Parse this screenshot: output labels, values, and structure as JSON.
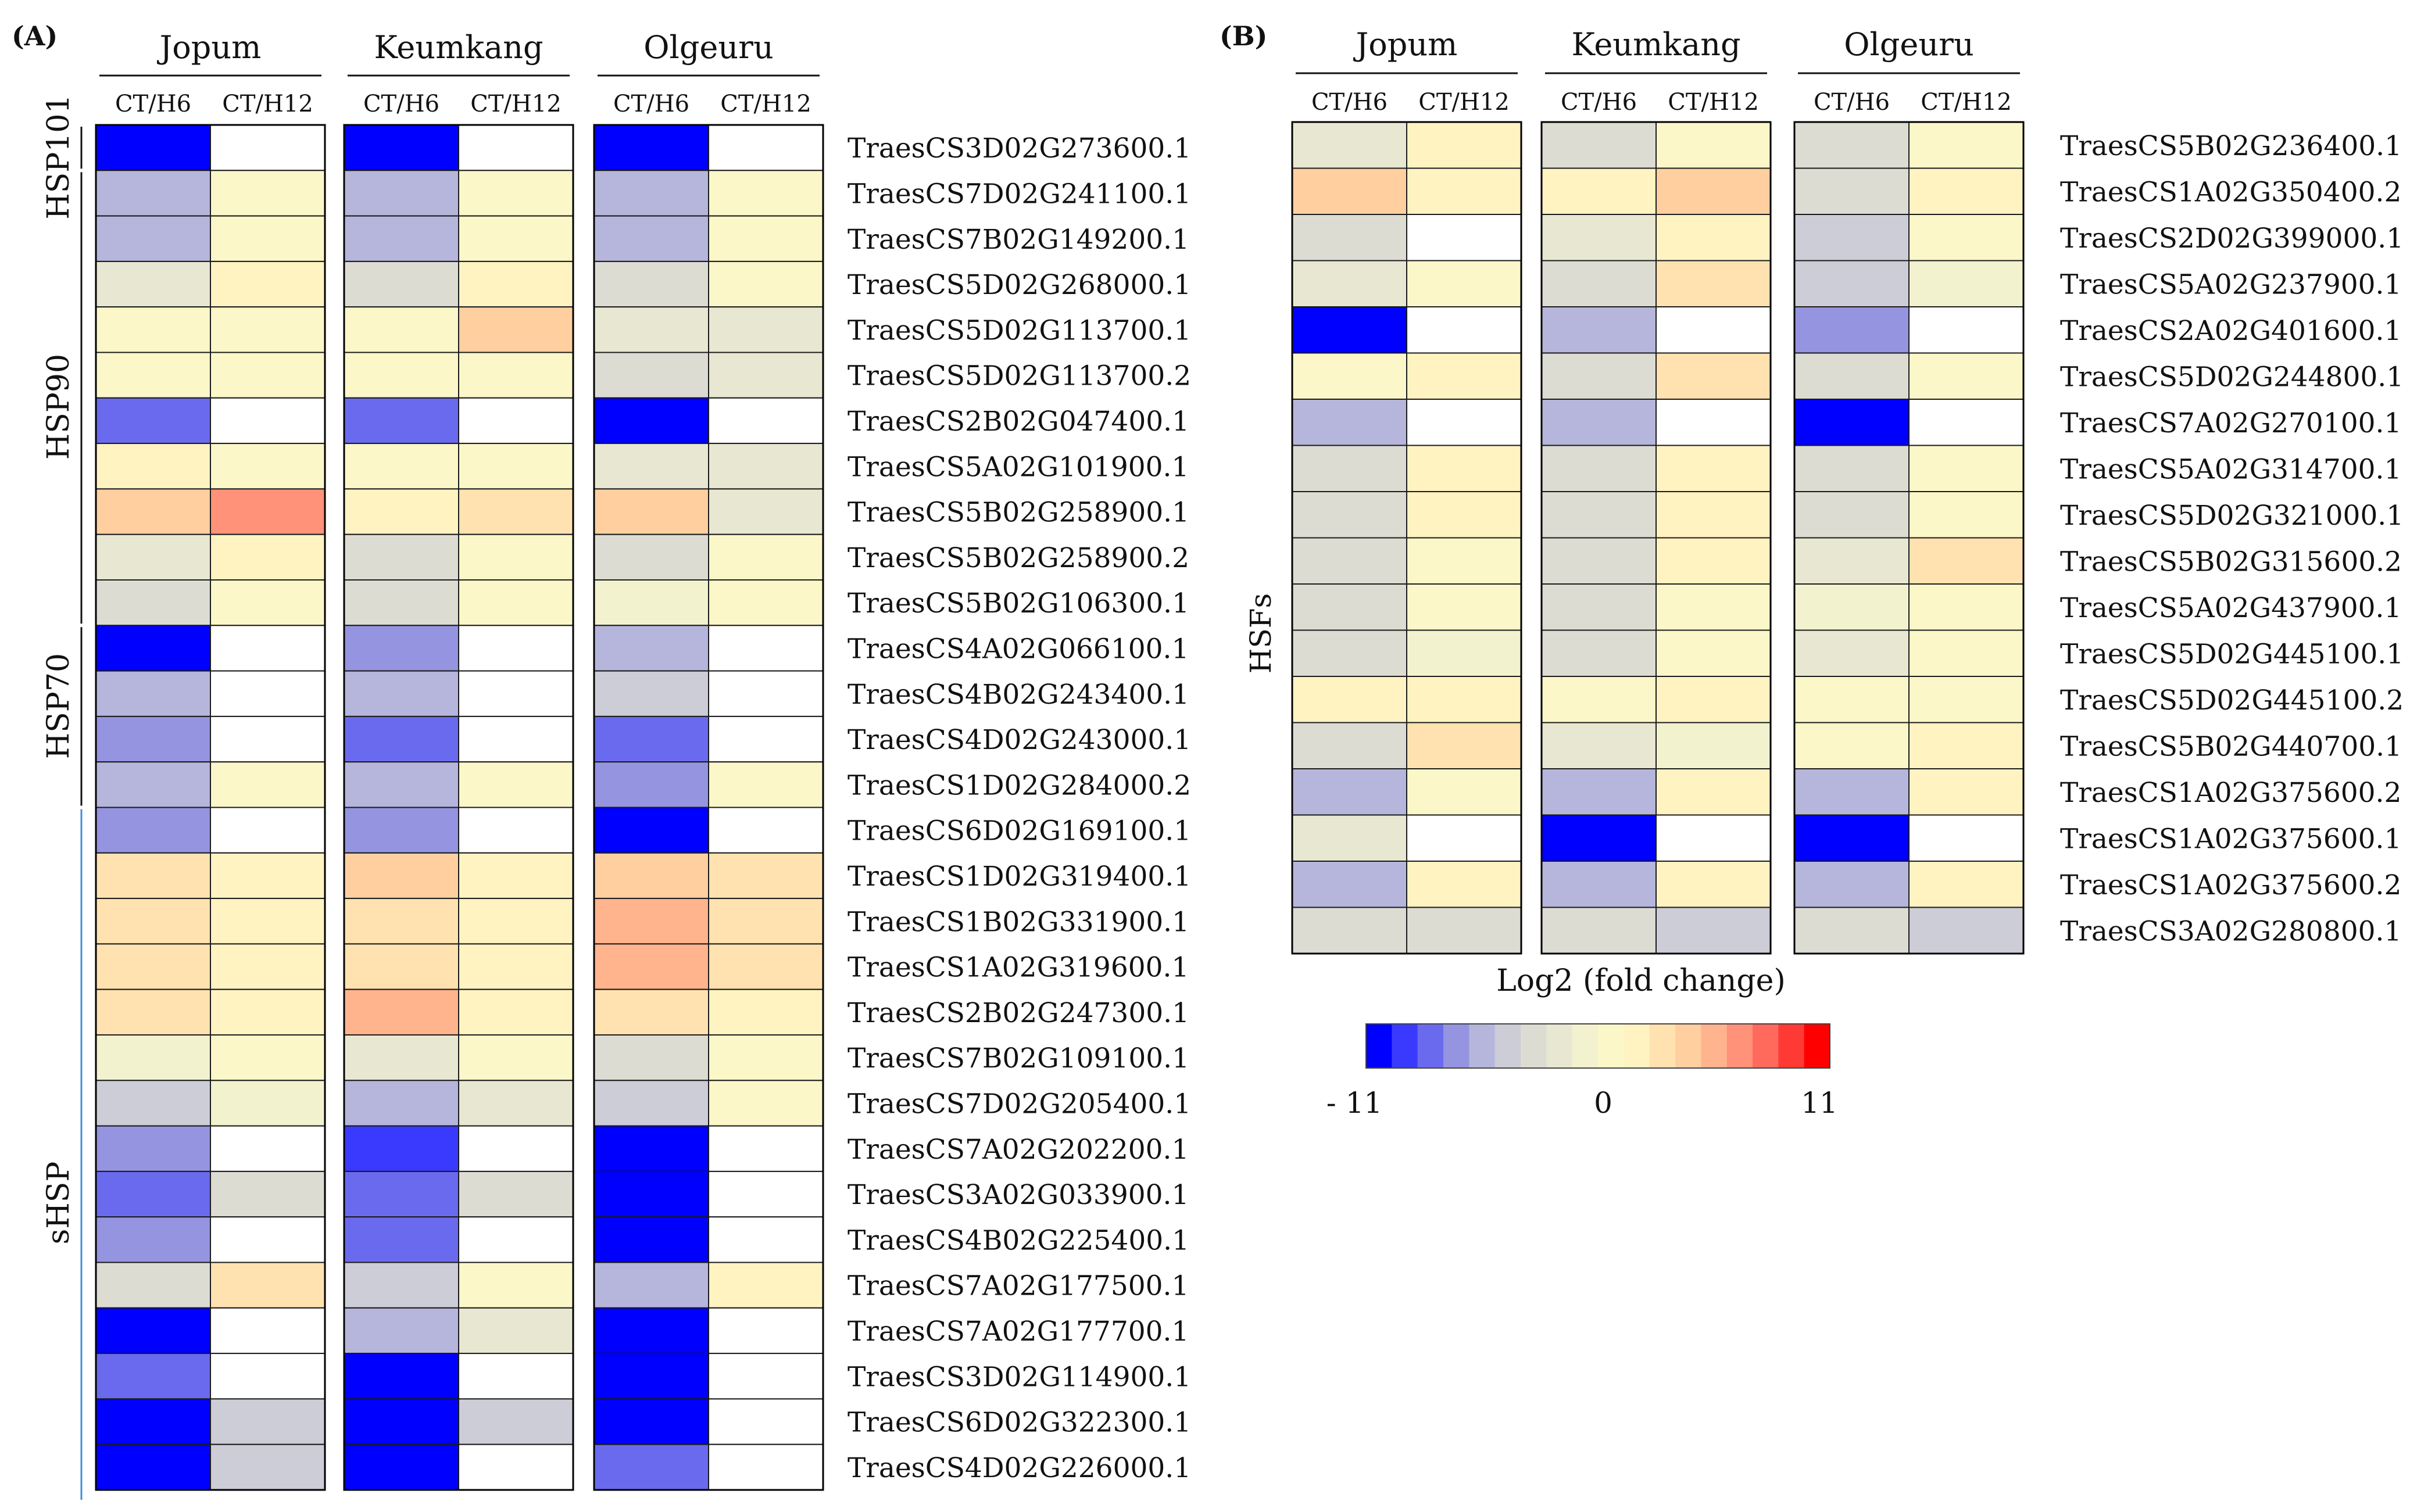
{
  "scale": {
    "min": -11,
    "max": 11,
    "title": "Log2 (fold change)",
    "tick_labels": [
      "- 11",
      "0",
      "11"
    ],
    "colors": [
      "#0000ff",
      "#3a3aff",
      "#6a6aee",
      "#9494e0",
      "#b6b6dc",
      "#cdcdd8",
      "#dcdcd3",
      "#e8e8d2",
      "#f2f2cf",
      "#fbf7c8",
      "#fff3c2",
      "#ffe2b0",
      "#ffcfa0",
      "#ffb48e",
      "#ff9279",
      "#ff6a5c",
      "#ff3a35",
      "#ff0000"
    ]
  },
  "chart_data": [
    {
      "type": "heatmap",
      "panel_label": "(A)",
      "cultivars": [
        "Jopum",
        "Keumkang",
        "Olgeuru"
      ],
      "conditions": [
        "CT/H6",
        "CT/H12"
      ],
      "groups": [
        {
          "label": "HSP101",
          "start": 0,
          "end": 1
        },
        {
          "label": "HSP90",
          "start": 1,
          "end": 11
        },
        {
          "label": "HSP70",
          "start": 11,
          "end": 15
        },
        {
          "label": "sHSP",
          "start": 15,
          "end": 30
        }
      ],
      "genes": [
        "TraesCS3D02G273600.1",
        "TraesCS7D02G241100.1",
        "TraesCS7B02G149200.1",
        "TraesCS5D02G268000.1",
        "TraesCS5D02G113700.1",
        "TraesCS5D02G113700.2",
        "TraesCS2B02G047400.1",
        "TraesCS5A02G101900.1",
        "TraesCS5B02G258900.1",
        "TraesCS5B02G258900.2",
        "TraesCS5B02G106300.1",
        "TraesCS4A02G066100.1",
        "TraesCS4B02G243400.1",
        "TraesCS4D02G243000.1",
        "TraesCS1D02G284000.2",
        "TraesCS6D02G169100.1",
        "TraesCS1D02G319400.1",
        "TraesCS1B02G331900.1",
        "TraesCS1A02G319600.1",
        "TraesCS2B02G247300.1",
        "TraesCS7B02G109100.1",
        "TraesCS7D02G205400.1",
        "TraesCS7A02G202200.1",
        "TraesCS3A02G033900.1",
        "TraesCS4B02G225400.1",
        "TraesCS7A02G177500.1",
        "TraesCS7A02G177700.1",
        "TraesCS3D02G114900.1",
        "TraesCS6D02G322300.1",
        "TraesCS4D02G226000.1"
      ],
      "values": [
        [
          -10,
          null,
          -10,
          null,
          -10,
          null
        ],
        [
          -5,
          1,
          -6,
          1,
          -6,
          1
        ],
        [
          -5,
          0.5,
          -6,
          0.5,
          -5.5,
          0.5
        ],
        [
          -2,
          2,
          -2.5,
          2,
          -3,
          1
        ],
        [
          0,
          1,
          1,
          4,
          -2,
          -2
        ],
        [
          1,
          1,
          0,
          1,
          -3,
          -2
        ],
        [
          -8,
          null,
          -8.5,
          null,
          -10.5,
          null
        ],
        [
          2,
          1,
          0.5,
          1,
          -2,
          -2
        ],
        [
          4,
          7,
          2,
          3,
          4.5,
          -2
        ],
        [
          -2,
          2,
          -3,
          1,
          -3,
          1
        ],
        [
          -3,
          0.5,
          -3.5,
          1,
          -1,
          1
        ],
        [
          -10,
          null,
          -6.5,
          null,
          -5.5,
          null
        ],
        [
          -5,
          null,
          -6,
          null,
          -4.5,
          null
        ],
        [
          -6.5,
          null,
          -8,
          null,
          -8.5,
          null
        ],
        [
          -6,
          0,
          -6,
          1,
          -6.5,
          1
        ],
        [
          -7,
          null,
          -6.5,
          null,
          -10.5,
          null
        ],
        [
          3.5,
          2,
          4,
          2,
          4.5,
          2.5
        ],
        [
          3.5,
          2,
          3.5,
          2,
          5,
          3
        ],
        [
          3.5,
          2,
          3.5,
          2,
          5,
          2.5
        ],
        [
          3.5,
          2,
          5,
          2,
          2.5,
          2
        ],
        [
          -1,
          1,
          -2,
          1,
          -2.5,
          1
        ],
        [
          -4.5,
          -1,
          -5,
          -2,
          -4.5,
          0
        ],
        [
          -6.5,
          null,
          -9,
          null,
          -11,
          null
        ],
        [
          -8,
          -3,
          -8,
          -3,
          -11,
          null
        ],
        [
          -6.5,
          null,
          -8.5,
          null,
          -11,
          null
        ],
        [
          -3.5,
          2.5,
          -4,
          1,
          -5.5,
          2
        ],
        [
          -11,
          null,
          -5,
          -1.5,
          -11,
          null
        ],
        [
          -8.5,
          null,
          -10,
          null,
          -11,
          null
        ],
        [
          -10,
          -4.5,
          -10,
          -4.5,
          -10.5,
          null
        ],
        [
          -10,
          -4.5,
          -10,
          null,
          -7.5,
          null
        ]
      ]
    },
    {
      "type": "heatmap",
      "panel_label": "(B)",
      "side_label": "HSFs",
      "cultivars": [
        "Jopum",
        "Keumkang",
        "Olgeuru"
      ],
      "conditions": [
        "CT/H6",
        "CT/H12"
      ],
      "genes": [
        "TraesCS5B02G236400.1",
        "TraesCS1A02G350400.2",
        "TraesCS2D02G399000.1",
        "TraesCS5A02G237900.1",
        "TraesCS2A02G401600.1",
        "TraesCS5D02G244800.1",
        "TraesCS7A02G270100.1",
        "TraesCS5A02G314700.1",
        "TraesCS5D02G321000.1",
        "TraesCS5B02G315600.2",
        "TraesCS5A02G437900.1",
        "TraesCS5D02G445100.1",
        "TraesCS5D02G445100.2",
        "TraesCS5B02G440700.1",
        "TraesCS1A02G375600.2",
        "TraesCS1A02G375600.1",
        "TraesCS1A02G375600.2",
        "TraesCS3A02G280800.1"
      ],
      "values": [
        [
          -2,
          1.5,
          -3.5,
          0.5,
          -3.5,
          0.5
        ],
        [
          4,
          2,
          1.5,
          4,
          -2.5,
          2
        ],
        [
          -3.5,
          null,
          -2,
          2,
          -4.5,
          1
        ],
        [
          -1.5,
          1,
          -3,
          3.5,
          -4.5,
          -1
        ],
        [
          -10,
          null,
          -6,
          null,
          -7,
          null
        ],
        [
          1,
          2,
          -2.5,
          3.5,
          -3,
          0.5
        ],
        [
          -5,
          null,
          -6,
          null,
          -11,
          null
        ],
        [
          -3,
          1.5,
          -3,
          2,
          -2.5,
          1
        ],
        [
          -3,
          2,
          -3,
          2,
          -2.5,
          1
        ],
        [
          -3.5,
          1,
          -3.5,
          2,
          -1.5,
          2.5
        ],
        [
          -3,
          0,
          -2.5,
          1,
          -1,
          1
        ],
        [
          -3.5,
          -0.5,
          -2.5,
          0.5,
          -2,
          1
        ],
        [
          2,
          1.5,
          1,
          1.5,
          0,
          0.5
        ],
        [
          -3,
          3.5,
          -2,
          -0.5,
          0.5,
          1.5
        ],
        [
          -6,
          1,
          -5.5,
          2,
          -5,
          1.5
        ],
        [
          -2,
          null,
          -11,
          null,
          -11,
          null
        ],
        [
          -5.5,
          1.5,
          -5,
          2,
          -5,
          2
        ],
        [
          -2.5,
          -2.5,
          -2.5,
          -4,
          -2.5,
          -4.5
        ]
      ]
    }
  ]
}
